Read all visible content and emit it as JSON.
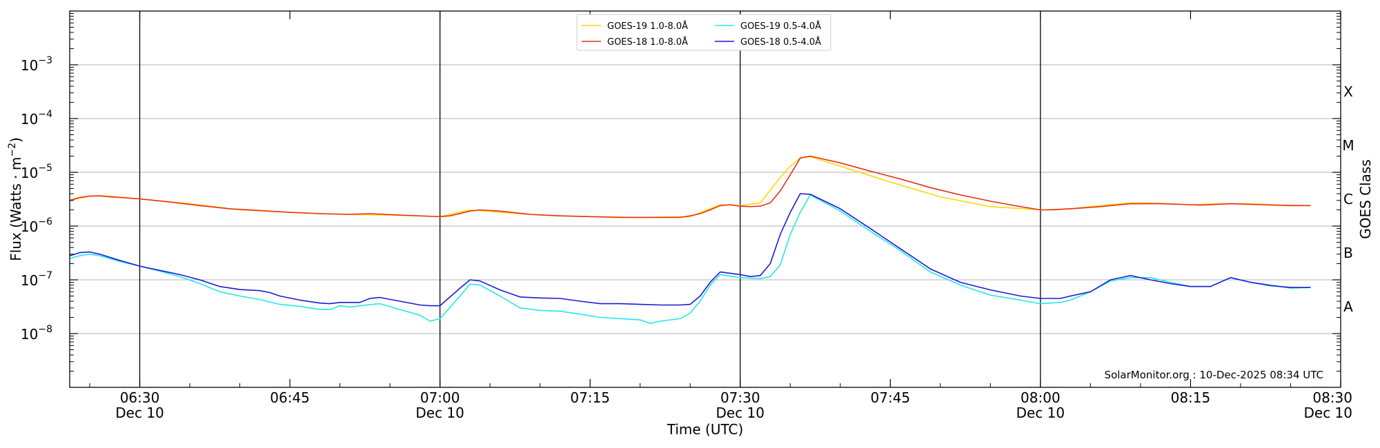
{
  "chart_data": {
    "type": "line",
    "xlabel": "Time (UTC)",
    "ylabel_main": "Flux (Watts · m",
    "ylabel_sup": "−2",
    "ylabel_close": ")",
    "y2label": "GOES Class",
    "y_scale": "log",
    "ylim": [
      1e-09,
      0.01
    ],
    "xlim": [
      "06:23",
      "08:30"
    ],
    "grid": "horizontal at decades",
    "legend_placement": "top-center",
    "footer": "SolarMonitor.org : 10-Dec-2025 08:34 UTC",
    "y_ticks": [
      {
        "value": 1e-08,
        "base": "10",
        "exp": "−8"
      },
      {
        "value": 1e-07,
        "base": "10",
        "exp": "−7"
      },
      {
        "value": 1e-06,
        "base": "10",
        "exp": "−6"
      },
      {
        "value": 1e-05,
        "base": "10",
        "exp": "−5"
      },
      {
        "value": 0.0001,
        "base": "10",
        "exp": "−4"
      },
      {
        "value": 0.001,
        "base": "10",
        "exp": "−3"
      }
    ],
    "x_ticks": [
      {
        "time": "06:30",
        "date": "Dec 10"
      },
      {
        "time": "06:45",
        "date": ""
      },
      {
        "time": "07:00",
        "date": "Dec 10"
      },
      {
        "time": "07:15",
        "date": ""
      },
      {
        "time": "07:30",
        "date": "Dec 10"
      },
      {
        "time": "07:45",
        "date": ""
      },
      {
        "time": "08:00",
        "date": "Dec 10"
      },
      {
        "time": "08:15",
        "date": ""
      },
      {
        "time": "08:30",
        "date": "Dec 10"
      }
    ],
    "vertical_lines": [
      "06:30",
      "07:00",
      "07:30",
      "08:00"
    ],
    "goes_classes": [
      {
        "label": "A",
        "value": 3.16e-08
      },
      {
        "label": "B",
        "value": 3.16e-07
      },
      {
        "label": "C",
        "value": 3.16e-06
      },
      {
        "label": "M",
        "value": 3.16e-05
      },
      {
        "label": "X",
        "value": 0.000316
      }
    ],
    "series": [
      {
        "name": "GOES-19 1.0-8.0Å",
        "color": "#ffd700",
        "x": [
          "06:23",
          "06:25",
          "06:27",
          "06:30",
          "06:35",
          "06:40",
          "06:45",
          "06:50",
          "06:55",
          "07:00",
          "07:03",
          "07:06",
          "07:10",
          "07:15",
          "07:20",
          "07:25",
          "07:28",
          "07:30",
          "07:32",
          "07:34",
          "07:35",
          "07:36",
          "07:37",
          "07:40",
          "07:45",
          "07:50",
          "07:55",
          "08:00",
          "08:03",
          "08:06",
          "08:09",
          "08:12",
          "08:15",
          "08:18",
          "08:21",
          "08:24",
          "08:27"
        ],
        "values": [
          3e-06,
          3.6e-06,
          3.6e-06,
          3.2e-06,
          2.6e-06,
          2e-06,
          1.8e-06,
          1.65e-06,
          1.6e-06,
          1.5e-06,
          2e-06,
          1.8e-06,
          1.6e-06,
          1.5e-06,
          1.45e-06,
          1.5e-06,
          2.5e-06,
          2.4e-06,
          2.7e-06,
          8e-06,
          1.3e-05,
          1.85e-05,
          1.95e-05,
          1.3e-05,
          6.6e-06,
          3.5e-06,
          2.3e-06,
          2e-06,
          2.1e-06,
          2.4e-06,
          2.7e-06,
          2.65e-06,
          2.5e-06,
          2.6e-06,
          2.6e-06,
          2.45e-06,
          2.4e-06
        ]
      },
      {
        "name": "GOES-18 1.0-8.0Å",
        "color": "#e8301a",
        "x": [
          "06:23",
          "06:24",
          "06:25",
          "06:26",
          "06:27",
          "06:28",
          "06:30",
          "06:33",
          "06:36",
          "06:39",
          "06:42",
          "06:45",
          "06:48",
          "06:51",
          "06:53",
          "06:56",
          "07:00",
          "07:01",
          "07:03",
          "07:04",
          "07:06",
          "07:09",
          "07:12",
          "07:15",
          "07:18",
          "07:21",
          "07:24",
          "07:25",
          "07:26",
          "07:27",
          "07:28",
          "07:29",
          "07:30",
          "07:31",
          "07:32",
          "07:33",
          "07:34",
          "07:35",
          "07:36",
          "07:37",
          "07:40",
          "07:43",
          "07:46",
          "07:49",
          "07:52",
          "07:55",
          "07:58",
          "08:00",
          "08:01",
          "08:03",
          "08:06",
          "08:09",
          "08:12",
          "08:15",
          "08:16",
          "08:19",
          "08:22",
          "08:25",
          "08:27"
        ],
        "values": [
          3e-06,
          3.4e-06,
          3.6e-06,
          3.65e-06,
          3.5e-06,
          3.4e-06,
          3.2e-06,
          2.8e-06,
          2.4e-06,
          2.1e-06,
          1.95e-06,
          1.8e-06,
          1.7e-06,
          1.65e-06,
          1.7e-06,
          1.6e-06,
          1.5e-06,
          1.55e-06,
          1.9e-06,
          2e-06,
          1.9e-06,
          1.65e-06,
          1.55e-06,
          1.5e-06,
          1.45e-06,
          1.45e-06,
          1.45e-06,
          1.55e-06,
          1.7e-06,
          2e-06,
          2.4e-06,
          2.5e-06,
          2.35e-06,
          2.3e-06,
          2.35e-06,
          2.7e-06,
          4.5e-06,
          9e-06,
          1.85e-05,
          2e-05,
          1.5e-05,
          1.05e-05,
          7.5e-06,
          5.2e-06,
          3.8e-06,
          2.9e-06,
          2.3e-06,
          2e-06,
          2e-06,
          2.1e-06,
          2.3e-06,
          2.6e-06,
          2.6e-06,
          2.5e-06,
          2.45e-06,
          2.6e-06,
          2.5e-06,
          2.4e-06,
          2.4e-06
        ]
      },
      {
        "name": "GOES-19 0.5-4.0Å",
        "color": "#22e8e8",
        "x": [
          "06:23",
          "06:24",
          "06:25",
          "06:26",
          "06:28",
          "06:30",
          "06:32",
          "06:34",
          "06:36",
          "06:38",
          "06:40",
          "06:42",
          "06:44",
          "06:46",
          "06:48",
          "06:49",
          "06:50",
          "06:51",
          "06:52",
          "06:54",
          "06:56",
          "06:58",
          "06:59",
          "07:00",
          "07:02",
          "07:03",
          "07:04",
          "07:06",
          "07:08",
          "07:10",
          "07:12",
          "07:14",
          "07:16",
          "07:18",
          "07:20",
          "07:21",
          "07:22",
          "07:24",
          "07:25",
          "07:26",
          "07:27",
          "07:28",
          "07:30",
          "07:32",
          "07:33",
          "07:34",
          "07:35",
          "07:36",
          "07:37",
          "07:40",
          "07:43",
          "07:46",
          "07:49",
          "07:52",
          "07:55",
          "07:58",
          "08:00",
          "08:02",
          "08:03",
          "08:05",
          "08:07",
          "08:09",
          "08:11",
          "08:13",
          "08:15",
          "08:17",
          "08:19",
          "08:21",
          "08:23",
          "08:25",
          "08:27"
        ],
        "values": [
          2.5e-07,
          2.8e-07,
          3e-07,
          2.8e-07,
          2.2e-07,
          1.8e-07,
          1.45e-07,
          1.15e-07,
          8.5e-08,
          6e-08,
          5e-08,
          4.3e-08,
          3.5e-08,
          3.2e-08,
          2.8e-08,
          2.8e-08,
          3.3e-08,
          3.1e-08,
          3.3e-08,
          3.6e-08,
          2.8e-08,
          2.2e-08,
          1.7e-08,
          1.9e-08,
          5e-08,
          8.3e-08,
          8e-08,
          5e-08,
          3e-08,
          2.7e-08,
          2.6e-08,
          2.3e-08,
          2e-08,
          1.9e-08,
          1.8e-08,
          1.55e-08,
          1.7e-08,
          1.9e-08,
          2.4e-08,
          4e-08,
          8e-08,
          1.25e-07,
          1.1e-07,
          1.05e-07,
          1.15e-07,
          1.9e-07,
          7e-07,
          1.8e-06,
          3.8e-06,
          1.9e-06,
          8e-07,
          3.5e-07,
          1.4e-07,
          8e-08,
          5.2e-08,
          4.2e-08,
          3.6e-08,
          3.8e-08,
          4.2e-08,
          6e-08,
          9.5e-08,
          1.1e-07,
          1.1e-07,
          9e-08,
          7.5e-08,
          7.5e-08,
          1.1e-07,
          9e-08,
          8e-08,
          7e-08,
          7.2e-08
        ]
      },
      {
        "name": "GOES-18 0.5-4.0Å",
        "color": "#1a1ad6",
        "x": [
          "06:23",
          "06:24",
          "06:25",
          "06:26",
          "06:28",
          "06:30",
          "06:32",
          "06:34",
          "06:36",
          "06:38",
          "06:40",
          "06:42",
          "06:43",
          "06:44",
          "06:46",
          "06:48",
          "06:49",
          "06:50",
          "06:52",
          "06:53",
          "06:54",
          "06:56",
          "06:58",
          "06:59",
          "07:00",
          "07:02",
          "07:03",
          "07:04",
          "07:06",
          "07:08",
          "07:10",
          "07:12",
          "07:14",
          "07:16",
          "07:18",
          "07:20",
          "07:22",
          "07:24",
          "07:25",
          "07:26",
          "07:27",
          "07:28",
          "07:30",
          "07:31",
          "07:32",
          "07:33",
          "07:34",
          "07:35",
          "07:36",
          "07:37",
          "07:40",
          "07:43",
          "07:46",
          "07:49",
          "07:52",
          "07:55",
          "07:58",
          "08:00",
          "08:02",
          "08:03",
          "08:05",
          "08:07",
          "08:09",
          "08:11",
          "08:13",
          "08:15",
          "08:17",
          "08:19",
          "08:21",
          "08:23",
          "08:25",
          "08:27"
        ],
        "values": [
          2.8e-07,
          3.2e-07,
          3.3e-07,
          3e-07,
          2.3e-07,
          1.8e-07,
          1.5e-07,
          1.25e-07,
          1e-07,
          7.5e-08,
          6.6e-08,
          6.3e-08,
          5.8e-08,
          5e-08,
          4.2e-08,
          3.7e-08,
          3.6e-08,
          3.8e-08,
          3.8e-08,
          4.5e-08,
          4.7e-08,
          4e-08,
          3.4e-08,
          3.3e-08,
          3.3e-08,
          7e-08,
          1e-07,
          9.5e-08,
          6.5e-08,
          4.8e-08,
          4.6e-08,
          4.5e-08,
          4e-08,
          3.6e-08,
          3.6e-08,
          3.5e-08,
          3.4e-08,
          3.4e-08,
          3.5e-08,
          5e-08,
          9e-08,
          1.4e-07,
          1.25e-07,
          1.15e-07,
          1.2e-07,
          2e-07,
          7e-07,
          1.8e-06,
          4e-06,
          3.9e-06,
          2.1e-06,
          9e-07,
          3.8e-07,
          1.6e-07,
          9e-08,
          6.5e-08,
          5e-08,
          4.5e-08,
          4.5e-08,
          5e-08,
          6e-08,
          1e-07,
          1.2e-07,
          1e-07,
          8.5e-08,
          7.5e-08,
          7.5e-08,
          1.1e-07,
          9e-08,
          7.8e-08,
          7.2e-08,
          7.2e-08
        ]
      }
    ]
  }
}
